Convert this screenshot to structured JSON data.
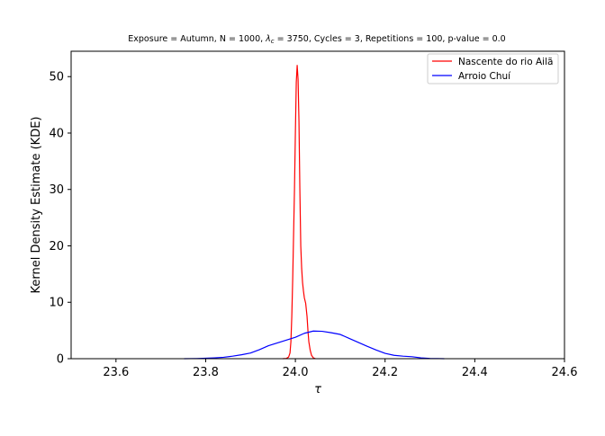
{
  "chart_data": {
    "type": "line",
    "title": "Exposure = Autumn, N = 1000, λ_c = 3750, Cycles = 3, Repetitions = 100, p-value = 0.0",
    "title_parts": {
      "before": "Exposure = Autumn, N = 1000, ",
      "lambda": "λ",
      "lambda_sub": "c",
      "after": " = 3750, Cycles = 3, Repetitions = 100, p-value = 0.0"
    },
    "xlabel": "τ",
    "ylabel": "Kernel Density Estimate (KDE)",
    "xlim": [
      23.5,
      24.6
    ],
    "ylim": [
      0,
      54.5
    ],
    "xticks": [
      23.6,
      23.8,
      24.0,
      24.2,
      24.4,
      24.6
    ],
    "xtick_labels": [
      "23.6",
      "23.8",
      "24.0",
      "24.2",
      "24.4",
      "24.6"
    ],
    "yticks": [
      0,
      10,
      20,
      30,
      40,
      50
    ],
    "ytick_labels": [
      "0",
      "10",
      "20",
      "30",
      "40",
      "50"
    ],
    "grid": false,
    "legend_position": "top-right",
    "series": [
      {
        "name": "Nascente do rio Ailã",
        "color": "#ff0000",
        "points": [
          [
            23.972,
            0
          ],
          [
            23.98,
            0.05
          ],
          [
            23.985,
            0.3
          ],
          [
            23.988,
            1.0
          ],
          [
            23.99,
            3.0
          ],
          [
            23.992,
            7.5
          ],
          [
            23.994,
            14.0
          ],
          [
            23.996,
            22.0
          ],
          [
            23.998,
            30.0
          ],
          [
            24.0,
            40.0
          ],
          [
            24.002,
            49.0
          ],
          [
            24.004,
            52.0
          ],
          [
            24.006,
            49.5
          ],
          [
            24.008,
            42.0
          ],
          [
            24.01,
            30.0
          ],
          [
            24.012,
            20.0
          ],
          [
            24.014,
            16.0
          ],
          [
            24.016,
            13.5
          ],
          [
            24.018,
            12.0
          ],
          [
            24.02,
            10.8
          ],
          [
            24.023,
            9.8
          ],
          [
            24.026,
            7.5
          ],
          [
            24.028,
            5.0
          ],
          [
            24.03,
            3.0
          ],
          [
            24.033,
            1.5
          ],
          [
            24.036,
            0.6
          ],
          [
            24.04,
            0.15
          ],
          [
            24.045,
            0
          ]
        ]
      },
      {
        "name": "Arroio Chuí",
        "color": "#0000ff",
        "points": [
          [
            23.752,
            0
          ],
          [
            23.78,
            0.03
          ],
          [
            23.8,
            0.08
          ],
          [
            23.82,
            0.15
          ],
          [
            23.84,
            0.25
          ],
          [
            23.86,
            0.45
          ],
          [
            23.88,
            0.7
          ],
          [
            23.9,
            1.0
          ],
          [
            23.92,
            1.6
          ],
          [
            23.94,
            2.3
          ],
          [
            23.96,
            2.8
          ],
          [
            23.98,
            3.3
          ],
          [
            24.0,
            3.8
          ],
          [
            24.02,
            4.5
          ],
          [
            24.04,
            4.9
          ],
          [
            24.06,
            4.85
          ],
          [
            24.08,
            4.6
          ],
          [
            24.1,
            4.3
          ],
          [
            24.12,
            3.6
          ],
          [
            24.14,
            2.9
          ],
          [
            24.16,
            2.2
          ],
          [
            24.18,
            1.55
          ],
          [
            24.2,
            0.95
          ],
          [
            24.22,
            0.6
          ],
          [
            24.24,
            0.45
          ],
          [
            24.26,
            0.35
          ],
          [
            24.28,
            0.15
          ],
          [
            24.3,
            0.05
          ],
          [
            24.332,
            0
          ]
        ]
      }
    ]
  }
}
